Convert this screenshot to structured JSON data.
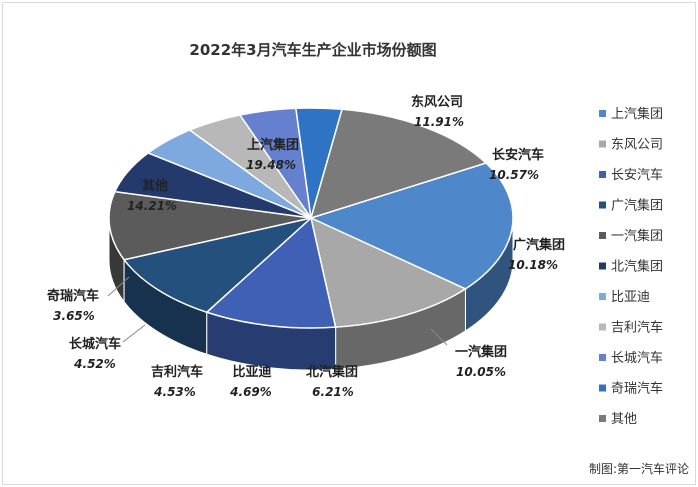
{
  "chart_data": {
    "type": "pie",
    "title": "2022年3月汽车生产企业市场份额图",
    "unit": "%",
    "legend_position": "right",
    "slices": [
      {
        "name": "上汽集团",
        "value": 19.48,
        "label": "19.48%",
        "color": "#4e88cb"
      },
      {
        "name": "东风公司",
        "value": 11.91,
        "label": "11.91%",
        "color": "#a8a8a8"
      },
      {
        "name": "长安汽车",
        "value": 10.57,
        "label": "10.57%",
        "color": "#3f60b5"
      },
      {
        "name": "广汽集团",
        "value": 10.18,
        "label": "10.18%",
        "color": "#24507e"
      },
      {
        "name": "一汽集团",
        "value": 10.05,
        "label": "10.05%",
        "color": "#5b5b5b"
      },
      {
        "name": "北汽集团",
        "value": 6.21,
        "label": "6.21%",
        "color": "#243a6c"
      },
      {
        "name": "比亚迪",
        "value": 4.69,
        "label": "4.69%",
        "color": "#7ea9df"
      },
      {
        "name": "吉利汽车",
        "value": 4.53,
        "label": "4.53%",
        "color": "#b8b8b8"
      },
      {
        "name": "长城汽车",
        "value": 4.52,
        "label": "4.52%",
        "color": "#6580cf"
      },
      {
        "name": "奇瑞汽车",
        "value": 3.65,
        "label": "3.65%",
        "color": "#2f74c4"
      },
      {
        "name": "其他",
        "value": 14.21,
        "label": "14.21%",
        "color": "#7a7a7a"
      }
    ]
  },
  "credit": "制图:第一汽车评论"
}
